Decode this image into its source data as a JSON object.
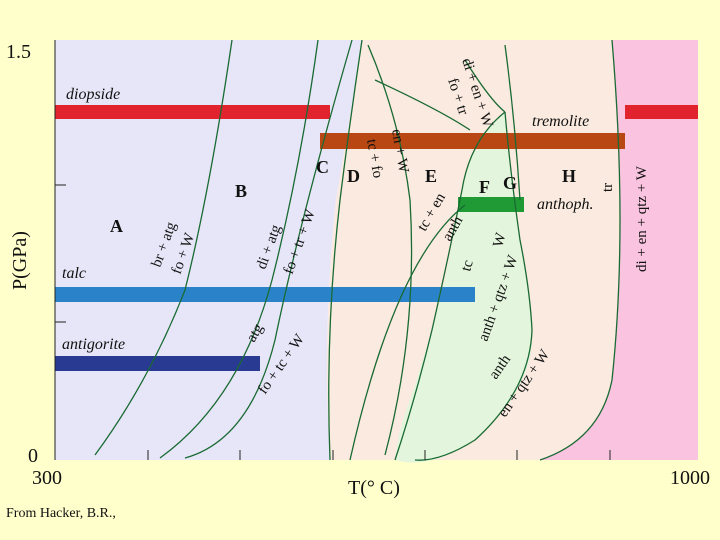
{
  "axes": {
    "y_top": "1.5",
    "y_bottom": "0",
    "y_title": "P(GPa)",
    "x_left": "300",
    "x_right": "1000",
    "x_title": "T(° C)"
  },
  "fields": [
    "A",
    "B",
    "C",
    "D",
    "E",
    "F",
    "G",
    "H"
  ],
  "bands": {
    "diopside": "diopside",
    "tremolite": "tremolite",
    "anthophyllite": "anthoph.",
    "talc": "talc",
    "antigorite": "antigorite"
  },
  "reactions": {
    "br_atg": "br + atg",
    "fo_w_1": "fo + W",
    "di_atg": "di + atg",
    "fo_tr_w": "fo + tr + W",
    "tc_fo": "tc + fo",
    "en_w": "en + W",
    "tc_en": "tc + en",
    "anth": "anth",
    "atg": "atg",
    "fo_tc_w": "fo + tc + W",
    "di_en_w": "di + en + W",
    "fo_tr": "fo + tr",
    "tr": "tr",
    "di_en_qtz_w": "di + en + qtz + W",
    "tc_w": "tc",
    "anth_w": "W",
    "anth_qtz_w": "anth + qtz + W",
    "anth2": "anth",
    "en_qtz_w": "en + qtz + W"
  },
  "colors": {
    "page_background": "#ffffcc",
    "plot_background": "#ffffff",
    "field_lavender": "#e6e6f8",
    "field_peach": "#faeadf",
    "field_green": "#e3f5dc",
    "field_pink": "#fac4e1",
    "curve": "#1a6a33",
    "diopside_band": "#e1232e",
    "tremolite_band": "#b84713",
    "anthophyllite_band": "#1f9a35",
    "talc_band": "#2a83c8",
    "antigorite_band": "#283a92"
  },
  "source": "From Hacker, B.R.,"
}
